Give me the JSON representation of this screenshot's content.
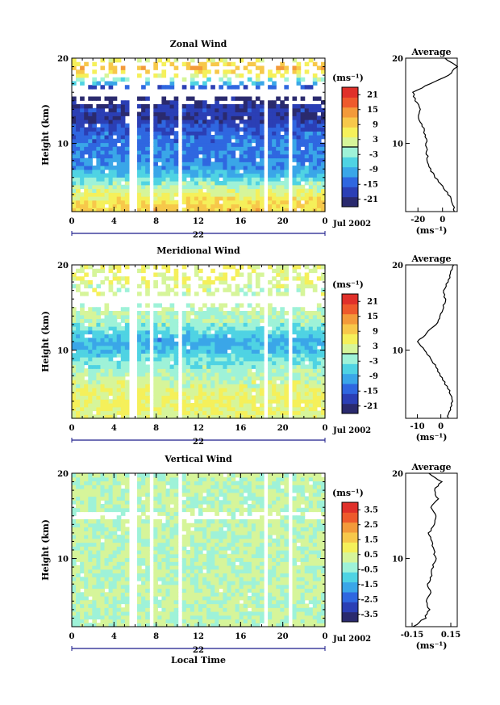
{
  "colors": {
    "wind_scale": [
      "#2a2a6e",
      "#2b3fb5",
      "#2f67e0",
      "#3aa6e8",
      "#4fd3e3",
      "#9ef2d8",
      "#d6f59a",
      "#f5f05a",
      "#f7c84a",
      "#f39a3a",
      "#ee5a2c",
      "#e0302a"
    ],
    "vertical_scale": [
      "#2a2a6e",
      "#2b3fb5",
      "#2f67e0",
      "#3aa6e8",
      "#4fd3e3",
      "#9ef2d8",
      "#d6f59a",
      "#f5f05a",
      "#f7c84a",
      "#f39a3a",
      "#ee5a2c",
      "#e0302a"
    ]
  },
  "axes": {
    "ylabel": "Height (km)",
    "y_ticks": [
      "20",
      "10"
    ],
    "x_ticks": [
      "0",
      "4",
      "8",
      "12",
      "16",
      "20",
      "0"
    ],
    "day_label": "22",
    "month_label": "Jul 2002",
    "xlabel": "Local Time",
    "unit": "(ms⁻¹)",
    "avg_unit": "(ms⁻¹)"
  },
  "panels": [
    {
      "title": "Zonal Wind",
      "avg_title": "Average",
      "cbar_ticks": [
        "21",
        "15",
        "9",
        "3",
        "-3",
        "-9",
        "-15",
        "-21"
      ],
      "avg_xticks": [
        "-20",
        "0"
      ],
      "avg_ytick": [
        "20",
        "10"
      ]
    },
    {
      "title": "Meridional Wind",
      "avg_title": "Average",
      "cbar_ticks": [
        "21",
        "15",
        "9",
        "3",
        "-3",
        "-9",
        "-15",
        "-21"
      ],
      "avg_xticks": [
        "-10",
        "0"
      ],
      "avg_ytick": [
        "20",
        "10"
      ]
    },
    {
      "title": "Vertical Wind",
      "avg_title": "Average",
      "cbar_ticks": [
        "3.5",
        "2.5",
        "1.5",
        "0.5",
        "-0.5",
        "-1.5",
        "-2.5",
        "-3.5"
      ],
      "avg_xticks": [
        "-0.15",
        "0.15"
      ],
      "avg_ytick": [
        "20",
        "10"
      ]
    }
  ],
  "chart_data": [
    {
      "type": "heatmap",
      "title": "Zonal Wind",
      "xlabel": "",
      "ylabel": "Height (km)",
      "xlim": [
        0,
        24
      ],
      "ylim": [
        2,
        20
      ],
      "colorbar_range": [
        -24,
        24
      ],
      "unit": "ms-1",
      "profile": {
        "height_km": [
          2,
          3,
          4,
          5,
          6,
          7,
          8,
          9,
          10,
          11,
          12,
          13,
          14,
          15,
          16,
          17,
          18,
          19,
          20
        ],
        "value": [
          10,
          8,
          5,
          0,
          -6,
          -10,
          -12,
          -13,
          -13,
          -14,
          -16,
          -20,
          -18,
          -22,
          -24,
          -10,
          5,
          12,
          2
        ]
      },
      "profile_xlim": [
        -30,
        12
      ]
    },
    {
      "type": "heatmap",
      "title": "Meridional Wind",
      "xlabel": "",
      "ylabel": "Height (km)",
      "xlim": [
        0,
        24
      ],
      "ylim": [
        2,
        20
      ],
      "colorbar_range": [
        -24,
        24
      ],
      "unit": "ms-1",
      "profile": {
        "height_km": [
          2,
          3,
          4,
          5,
          6,
          7,
          8,
          9,
          10,
          11,
          12,
          13,
          14,
          15,
          16,
          17,
          18,
          19,
          20
        ],
        "value": [
          3,
          4,
          5,
          4,
          2,
          0,
          -2,
          -4,
          -7,
          -10,
          -6,
          -2,
          0,
          1,
          2,
          1,
          3,
          4,
          5
        ]
      },
      "profile_xlim": [
        -15,
        7
      ]
    },
    {
      "type": "heatmap",
      "title": "Vertical Wind",
      "xlabel": "Local Time",
      "ylabel": "Height (km)",
      "xlim": [
        0,
        24
      ],
      "ylim": [
        2,
        20
      ],
      "colorbar_range": [
        -4,
        4
      ],
      "unit": "ms-1",
      "profile": {
        "height_km": [
          2,
          3,
          4,
          5,
          6,
          7,
          8,
          9,
          10,
          11,
          12,
          13,
          14,
          15,
          16,
          17,
          18,
          19,
          20
        ],
        "value": [
          -0.14,
          -0.05,
          -0.02,
          -0.04,
          -0.01,
          -0.03,
          0,
          0.01,
          0.03,
          0.02,
          0.0,
          -0.02,
          0.02,
          0.04,
          -0.01,
          0.05,
          0.02,
          0.08,
          -0.02
        ]
      },
      "profile_xlim": [
        -0.2,
        0.2
      ]
    }
  ]
}
